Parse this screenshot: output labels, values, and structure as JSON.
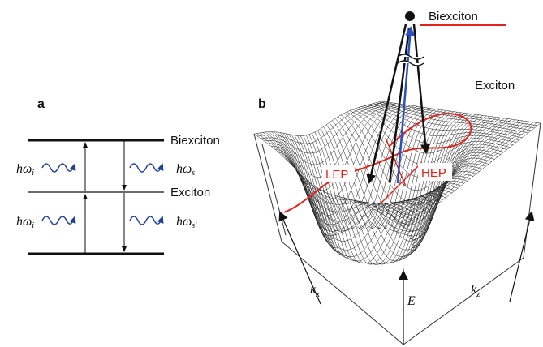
{
  "panel_a": {
    "label": "a",
    "levels": {
      "upper": "Biexciton",
      "middle": "Exciton"
    },
    "photons": [
      {
        "base": "ħω",
        "sub": "i"
      },
      {
        "base": "ħω",
        "sub": "i"
      },
      {
        "base": "ħω",
        "sub": "s"
      },
      {
        "base": "ħω",
        "sub": "s'"
      }
    ]
  },
  "panel_b": {
    "label": "b",
    "biexciton": "Biexciton",
    "exciton": "Exciton",
    "branches": {
      "lower": "LEP",
      "higher": "HEP"
    },
    "axes": {
      "kx": {
        "base": "k",
        "sub": "x"
      },
      "kz": {
        "base": "k",
        "sub": "z"
      },
      "energy": "E"
    }
  }
}
